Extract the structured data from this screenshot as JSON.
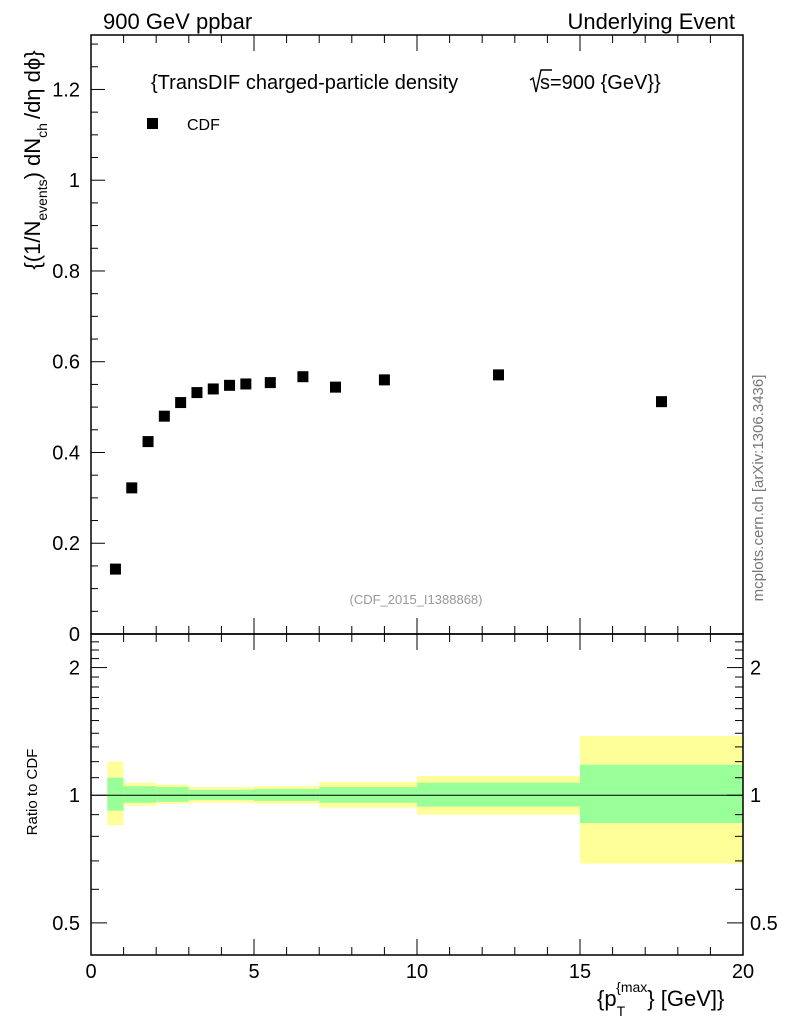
{
  "header": {
    "left": "900 GeV ppbar",
    "right": "Underlying Event"
  },
  "side_label": "mcplots.cern.ch [arXiv:1306.3436]",
  "chart_data": [
    {
      "type": "scatter",
      "title_text": "{TransDIF charged-particle density",
      "title_sqrt": "s",
      "title_energy": "=900 {GeV}}",
      "ylabel_parts": {
        "open": "{(1/N",
        "events_sub": "events",
        "mid": ") dN",
        "ch_sub": "ch",
        "tail": "/dη dϕ}"
      },
      "legend": [
        {
          "name": "CDF",
          "marker": "square",
          "color": "#000000"
        }
      ],
      "watermark": "(CDF_2015_I1388868)",
      "xlim": [
        0,
        20
      ],
      "ylim": [
        0,
        1.32
      ],
      "yticks": [
        0,
        0.2,
        0.4,
        0.6,
        0.8,
        1,
        1.2
      ],
      "ytick_labels": [
        "0",
        "0.2",
        "0.4",
        "0.6",
        "0.8",
        "1",
        "1.2"
      ],
      "series": [
        {
          "name": "CDF",
          "x": [
            0.75,
            1.25,
            1.75,
            2.25,
            2.75,
            3.25,
            3.75,
            4.25,
            4.75,
            5.5,
            6.5,
            7.5,
            9.0,
            12.5,
            17.5
          ],
          "y": [
            0.143,
            0.322,
            0.424,
            0.48,
            0.51,
            0.532,
            0.54,
            0.548,
            0.551,
            0.554,
            0.567,
            0.544,
            0.56,
            0.571,
            0.512
          ]
        }
      ]
    },
    {
      "type": "area",
      "ylabel": "Ratio to CDF",
      "xlabel_parts": {
        "open": "{p",
        "sub": "T",
        "sup": "{max",
        "close": "} [GeV]}"
      },
      "xlim": [
        0,
        20
      ],
      "ylim": [
        0.42,
        2.4
      ],
      "yscale": "log",
      "yticks": [
        0.5,
        1,
        2
      ],
      "ytick_labels": [
        "0.5",
        "1",
        "2"
      ],
      "xticks": [
        0,
        5,
        10,
        15,
        20
      ],
      "xtick_labels": [
        "0",
        "5",
        "10",
        "15",
        "20"
      ],
      "reference_line": 1.0,
      "bins": [
        {
          "lo": 0.5,
          "hi": 1.0,
          "stat": [
            0.92,
            1.1
          ],
          "total": [
            0.85,
            1.2
          ]
        },
        {
          "lo": 1.0,
          "hi": 2.0,
          "stat": [
            0.96,
            1.05
          ],
          "total": [
            0.945,
            1.07
          ]
        },
        {
          "lo": 2.0,
          "hi": 3.0,
          "stat": [
            0.965,
            1.045
          ],
          "total": [
            0.955,
            1.06
          ]
        },
        {
          "lo": 3.0,
          "hi": 5.0,
          "stat": [
            0.975,
            1.03
          ],
          "total": [
            0.96,
            1.045
          ]
        },
        {
          "lo": 5.0,
          "hi": 7.0,
          "stat": [
            0.97,
            1.035
          ],
          "total": [
            0.955,
            1.05
          ]
        },
        {
          "lo": 7.0,
          "hi": 10.0,
          "stat": [
            0.96,
            1.045
          ],
          "total": [
            0.935,
            1.075
          ]
        },
        {
          "lo": 10.0,
          "hi": 15.0,
          "stat": [
            0.94,
            1.07
          ],
          "total": [
            0.9,
            1.11
          ]
        },
        {
          "lo": 15.0,
          "hi": 20.0,
          "stat": [
            0.86,
            1.18
          ],
          "total": [
            0.69,
            1.38
          ]
        }
      ],
      "colors": {
        "stat": "#99ff99",
        "total": "#ffff99"
      }
    }
  ]
}
